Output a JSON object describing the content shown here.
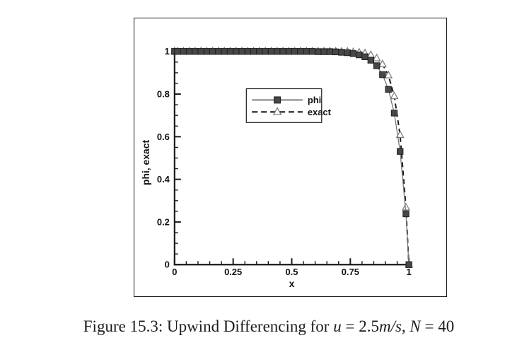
{
  "page": {
    "background": "#ffffff"
  },
  "figure": {
    "caption": {
      "text": "Figure 15.3: Upwind Differencing for u = 2.5m/s, N = 40",
      "segments": [
        {
          "text": "Figure 15.3: Upwind Differencing for ",
          "italic": false
        },
        {
          "text": "u",
          "italic": true
        },
        {
          "text": " = 2.5",
          "italic": false
        },
        {
          "text": "m/s",
          "italic": true
        },
        {
          "text": ", ",
          "italic": false
        },
        {
          "text": "N",
          "italic": true
        },
        {
          "text": " = 40",
          "italic": false
        }
      ]
    }
  },
  "chart_data": {
    "type": "line",
    "title": "",
    "xlabel": "x",
    "ylabel": "phi, exact",
    "xlim": [
      0,
      1
    ],
    "ylim": [
      0,
      1
    ],
    "grid": false,
    "frame": "left-bottom-axes-only",
    "axis_color": "#1a1a1a",
    "x_major_ticks": [
      0,
      0.25,
      0.5,
      0.75,
      1
    ],
    "x_major_tick_labels": [
      "0",
      "0.25",
      "0.5",
      "0.75",
      "1"
    ],
    "x_minor_tick_interval": 0.05,
    "y_major_ticks": [
      0,
      0.2,
      0.4,
      0.6,
      0.8,
      1
    ],
    "y_major_tick_labels": [
      "0",
      "0.2",
      "0.4",
      "0.6",
      "0.8",
      "1"
    ],
    "y_minor_tick_interval": 0.05,
    "legend": {
      "position": "inside-upper-middle-left",
      "border": true,
      "entries": [
        "phi",
        "exact"
      ]
    },
    "x": [
      0,
      0.0125,
      0.0375,
      0.0625,
      0.0875,
      0.1125,
      0.1375,
      0.1625,
      0.1875,
      0.2125,
      0.2375,
      0.2625,
      0.2875,
      0.3125,
      0.3375,
      0.3625,
      0.3875,
      0.4125,
      0.4375,
      0.4625,
      0.4875,
      0.5125,
      0.5375,
      0.5625,
      0.5875,
      0.6125,
      0.6375,
      0.6625,
      0.6875,
      0.7125,
      0.7375,
      0.7625,
      0.7875,
      0.8125,
      0.8375,
      0.8625,
      0.8875,
      0.9125,
      0.9375,
      0.9625,
      0.9875,
      1
    ],
    "series": [
      {
        "name": "phi",
        "marker": "square",
        "marker_fill": "#474747",
        "marker_stroke": "#1e1e1e",
        "line_style": "solid",
        "line_color": "#777777",
        "values": [
          1,
          1,
          1,
          1,
          1,
          1,
          1,
          1,
          1,
          1,
          1,
          1,
          1,
          1,
          1,
          1,
          1,
          1,
          1,
          1,
          1,
          1,
          1,
          1,
          1,
          0.999,
          0.999,
          0.999,
          0.998,
          0.996,
          0.994,
          0.99,
          0.984,
          0.975,
          0.959,
          0.933,
          0.891,
          0.822,
          0.711,
          0.531,
          0.238,
          0
        ]
      },
      {
        "name": "exact",
        "marker": "triangle",
        "marker_fill": "#fbfbfb",
        "marker_stroke": "#7a7a7a",
        "line_style": "dashed",
        "line_color": "#1a1a1a",
        "values": [
          1,
          1,
          1,
          1,
          1,
          1,
          1,
          1,
          1,
          1,
          1,
          1,
          1,
          1,
          1,
          1,
          1,
          1,
          1,
          1,
          1,
          1,
          1,
          1,
          1,
          1,
          1,
          1,
          1,
          0.999,
          0.999,
          0.997,
          0.995,
          0.991,
          0.983,
          0.968,
          0.94,
          0.888,
          0.79,
          0.608,
          0.268,
          0
        ]
      }
    ]
  }
}
